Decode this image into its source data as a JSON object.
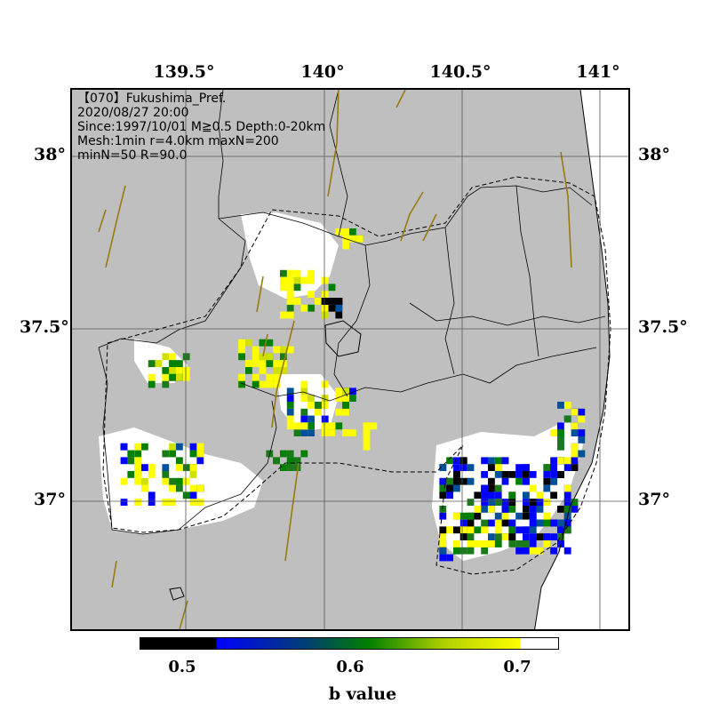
{
  "map": {
    "info_lines": [
      "【070】Fukushima_Pref.",
      "2020/08/27 20:00",
      "Since:1997/10/01 M≧0.5 Depth:0-20km",
      "Mesh:1min r=4.0km maxN=200",
      "minN=50 R=90.0"
    ],
    "lon_labels": [
      "139.5°",
      "140°",
      "140.5°",
      "141°"
    ],
    "lat_labels_left": [
      "38°",
      "37.5°",
      "37°"
    ],
    "lat_labels_right": [
      "38°",
      "37.5°",
      "37°"
    ],
    "colors": {
      "land": "#bfbfbf",
      "fault": "#9a7a10",
      "grid": "#555555",
      "border": "#000000"
    }
  },
  "colorbar": {
    "label": "b value",
    "ticks": [
      "0.5",
      "0.6",
      "0.7"
    ],
    "stops": [
      {
        "value": 0.45,
        "color": "#000000"
      },
      {
        "value": 0.5,
        "color": "#000000"
      },
      {
        "value": 0.5,
        "color": "#0000ff"
      },
      {
        "value": 0.56,
        "color": "#004070"
      },
      {
        "value": 0.6,
        "color": "#008000"
      },
      {
        "value": 0.65,
        "color": "#b0d000"
      },
      {
        "value": 0.7,
        "color": "#ffff00"
      },
      {
        "value": 0.7,
        "color": "#ffffff"
      },
      {
        "value": 0.725,
        "color": "#ffffff"
      }
    ]
  }
}
